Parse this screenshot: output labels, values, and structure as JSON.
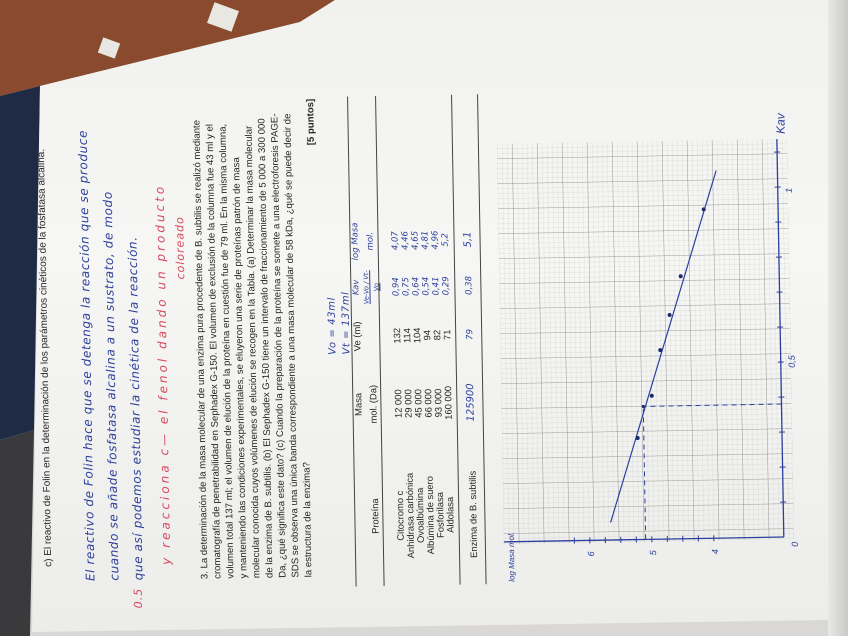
{
  "question_c": {
    "prompt": "c) El reactivo de Folin en la determinación de los parámetros cinéticos de la fosfatasa alcalina.",
    "answer_lines": [
      "El reactivo de Folin hace que se detenga la reacción que se produce",
      "cuando se añade fosfatasa alcalina a un sustrato, de modo",
      "que así podemos estudiar la cinética de la reacción."
    ],
    "grade": "0.5",
    "correction_lines": [
      "y reacciona c— el fenol dando un producto",
      "coloreado"
    ]
  },
  "question_3": {
    "lines": [
      "3. La determinación de la masa molecular de una enzima pura procedente de B. subtilis se realizó mediante",
      "cromatografía de penetrabilidad en Sephadex G-150. El volumen de exclusión de la columna fue 43 ml y el",
      "volumen total 137 ml; el volumen de elución de la proteína en cuestión fue de 79 ml. En la misma columna,",
      "y manteniendo  las  condiciones  experimentales,  se  eluyeron  una  serie  de  proteínas  patrón  de  masa",
      "molecular conocida cuyos volúmenes de elución se recogen en la Tabla. (a) Determinar la masa molecular",
      "de la enzima de B. subtilis. (b) El Sephadex G-150 tiene un intervalo de fraccionamiento de 5 000 a 300 000",
      "Da, ¿qué significa este dato? (c) Cuando la preparación de la proteína se somete a una electroforesis PAGE-",
      "SDS se observa una única banda correspondiente a una masa molecular de 58 kDa, ¿qué se puede decir de",
      "la estructura de la enzima?"
    ],
    "points": "[5 puntos]",
    "vo_note": "Vo = 43ml",
    "vt_note": "Vt = 137ml"
  },
  "table": {
    "headers": [
      "Proteína",
      "Masa mol. (Da)",
      "Ve (ml)",
      "Kav (Ve-Vo)/(Vt-Vo)",
      "log Masa mol."
    ],
    "header_top": [
      "",
      "Masa",
      "Ve (ml)",
      "Kav",
      "log Masa"
    ],
    "header_bottom": [
      "Proteína",
      "mol. (Da)",
      "",
      "Ve-Vo / Vt-Vo",
      "mol."
    ],
    "rows": [
      {
        "protein": "Citocromo c",
        "mass": "12 000",
        "ve": "132",
        "kav": "0,94",
        "log": "4,07"
      },
      {
        "protein": "Anhidrasa carbónica",
        "mass": "29 000",
        "ve": "114",
        "kav": "0,75",
        "log": "4,46"
      },
      {
        "protein": "Ovoalbúmina",
        "mass": "45 000",
        "ve": "104",
        "kav": "0,64",
        "log": "4,65"
      },
      {
        "protein": "Albúmina de suero",
        "mass": "66 000",
        "ve": "94",
        "kav": "0,54",
        "log": "4,81"
      },
      {
        "protein": "Fosforilasa",
        "mass": "93 000",
        "ve": "82",
        "kav": "0,41",
        "log": "4,96"
      },
      {
        "protein": "Aldolasa",
        "mass": "160 000",
        "ve": "71",
        "kav": "0,29",
        "log": "5,2"
      }
    ],
    "enzyme_row": {
      "protein": "Enzima de B. subtilis",
      "mass": "125900",
      "ve": "79",
      "kav": "0,38",
      "log": "5,1"
    }
  },
  "graph": {
    "xlabel": "Kav",
    "ylabel": "log Masa mol.",
    "x_ticks": [
      "0",
      "0,5",
      "1"
    ],
    "y_ticks": [
      "4",
      "5",
      "6"
    ],
    "points": [
      [
        0.94,
        4.07
      ],
      [
        0.75,
        4.46
      ],
      [
        0.64,
        4.65
      ],
      [
        0.54,
        4.81
      ],
      [
        0.41,
        4.96
      ],
      [
        0.29,
        5.2
      ]
    ],
    "enzyme_point": [
      0.38,
      5.1
    ],
    "fit_line": [
      [
        0.05,
        5.66
      ],
      [
        1.05,
        3.86
      ]
    ],
    "ink_color": "#2c3f9c",
    "correction": "?",
    "correction_color": "#d9475e"
  }
}
